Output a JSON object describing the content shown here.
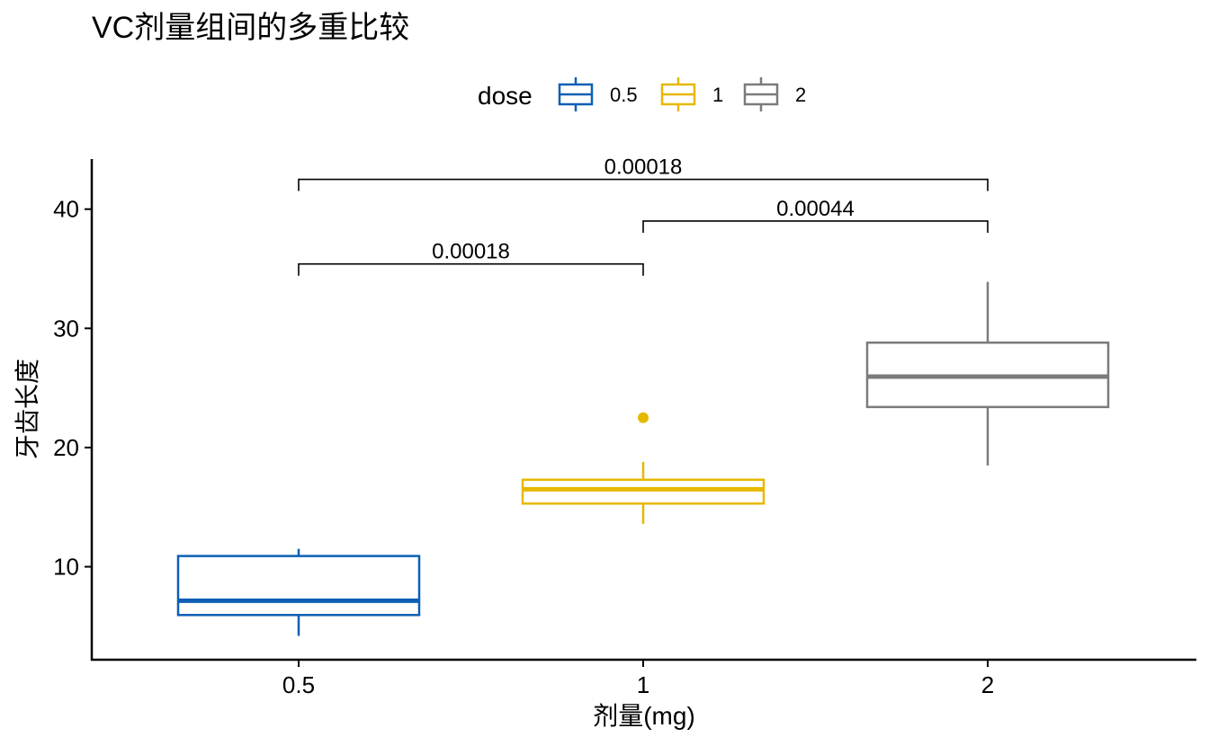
{
  "chart_data": {
    "type": "box",
    "title": "VC剂量组间的多重比较",
    "xlabel": "剂量(mg)",
    "ylabel": "牙齿长度",
    "categories": [
      "0.5",
      "1",
      "2"
    ],
    "ylim": [
      2.2,
      44.2
    ],
    "yticks": [
      10,
      20,
      30,
      40
    ],
    "grid": false,
    "legend": {
      "title": "dose",
      "placement": "top",
      "entries": [
        "0.5",
        "1",
        "2"
      ]
    },
    "colors": [
      "#0E5FB4",
      "#E7B800",
      "#7B7B7B"
    ],
    "series": [
      {
        "name": "0.5",
        "min": 4.2,
        "q1": 5.95,
        "median": 7.15,
        "q3": 10.9,
        "max": 11.5,
        "outliers": []
      },
      {
        "name": "1",
        "min": 13.6,
        "q1": 15.3,
        "median": 16.5,
        "q3": 17.3,
        "max": 18.8,
        "outliers": [
          22.5
        ]
      },
      {
        "name": "2",
        "min": 18.5,
        "q1": 23.4,
        "median": 25.95,
        "q3": 28.8,
        "max": 33.9,
        "outliers": []
      }
    ],
    "comparisons": [
      {
        "group1": "0.5",
        "group2": "1",
        "p": "0.00018",
        "y": 35.4
      },
      {
        "group1": "1",
        "group2": "2",
        "p": "0.00044",
        "y": 39.0
      },
      {
        "group1": "0.5",
        "group2": "2",
        "p": "0.00018",
        "y": 42.5
      }
    ]
  }
}
